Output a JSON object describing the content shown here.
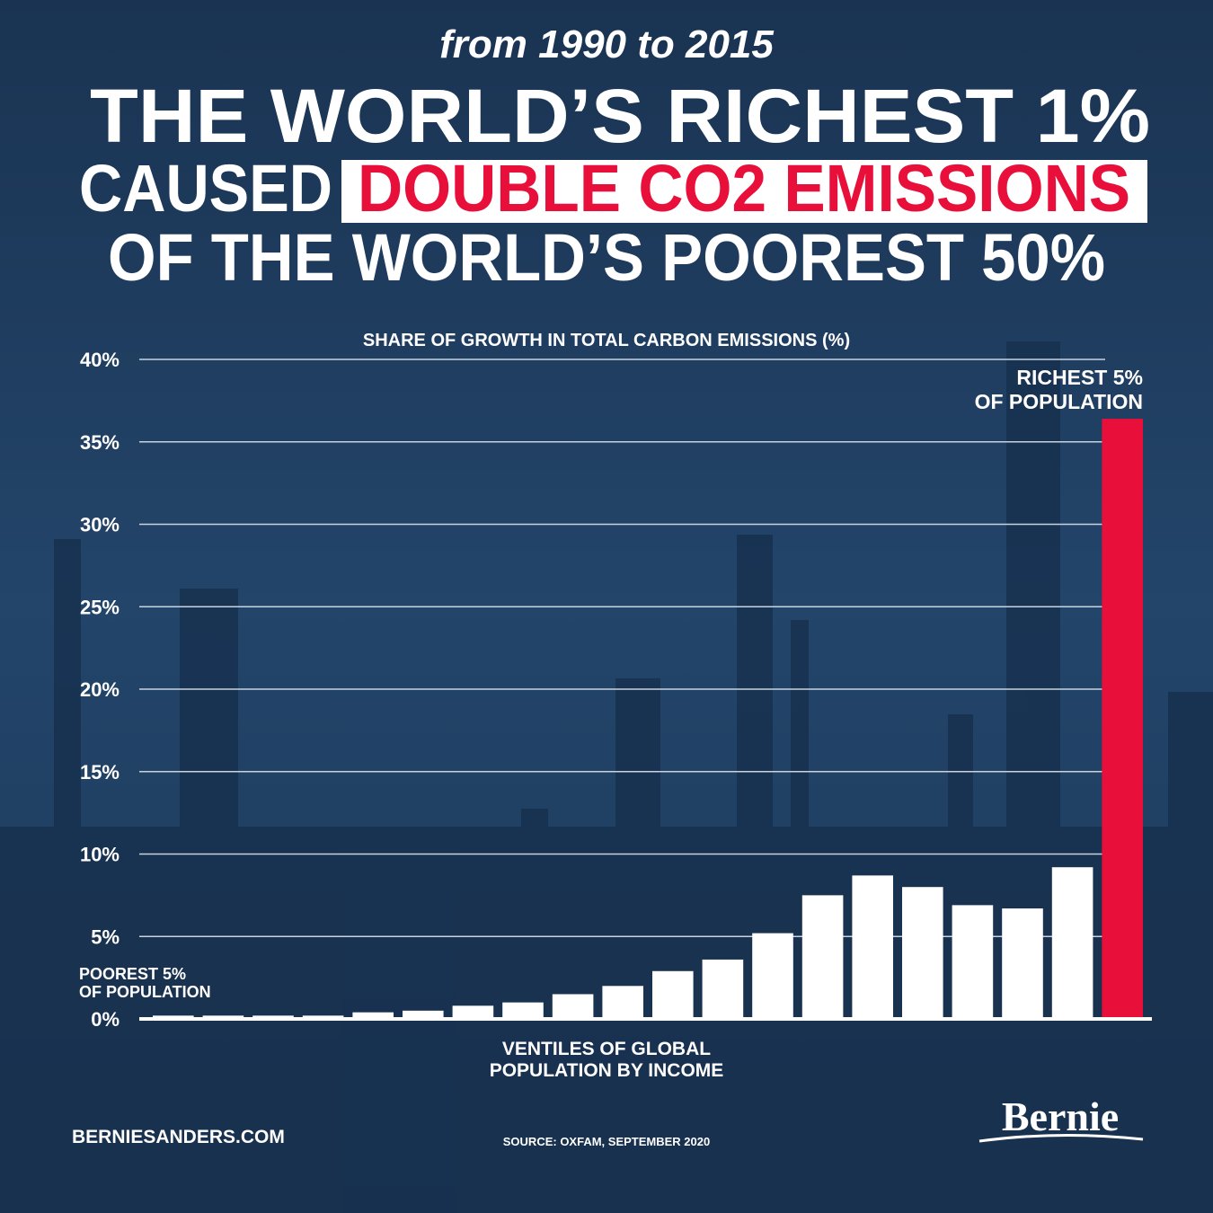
{
  "header": {
    "subtitle": "from 1990 to 2015",
    "line1": "THE WORLD’S RICHEST 1%",
    "line2a": "CAUSED",
    "line2b": "DOUBLE CO2 EMISSIONS",
    "line3": "OF THE WORLD’S POOREST 50%"
  },
  "chart_data": {
    "type": "bar",
    "title": "SHARE OF GROWTH IN TOTAL CARBON EMISSIONS (%)",
    "xlabel": [
      "VENTILES OF GLOBAL",
      "POPULATION BY INCOME"
    ],
    "categories": [
      null,
      null,
      null,
      null,
      null,
      null,
      null,
      null,
      null,
      null,
      null,
      null,
      null,
      null,
      null,
      null,
      null,
      null,
      null,
      null
    ],
    "values": [
      0.2,
      0.2,
      0.2,
      0.2,
      0.4,
      0.5,
      0.8,
      1.0,
      1.5,
      2.0,
      2.9,
      3.6,
      5.2,
      7.5,
      8.7,
      8.0,
      6.9,
      6.7,
      9.2,
      36.4
    ],
    "colors": [
      "#ffffff",
      "#ffffff",
      "#ffffff",
      "#ffffff",
      "#ffffff",
      "#ffffff",
      "#ffffff",
      "#ffffff",
      "#ffffff",
      "#ffffff",
      "#ffffff",
      "#ffffff",
      "#ffffff",
      "#ffffff",
      "#ffffff",
      "#ffffff",
      "#ffffff",
      "#ffffff",
      "#ffffff",
      "#e8103a"
    ],
    "ylim": [
      0,
      40
    ],
    "yticks": [
      {
        "value": 0,
        "label": "0%"
      },
      {
        "value": 5,
        "label": "5%"
      },
      {
        "value": 10,
        "label": "10%"
      },
      {
        "value": 15,
        "label": "15%"
      },
      {
        "value": 20,
        "label": "20%"
      },
      {
        "value": 25,
        "label": "25%"
      },
      {
        "value": 30,
        "label": "30%"
      },
      {
        "value": 35,
        "label": "35%"
      },
      {
        "value": 40,
        "label": "40%"
      }
    ],
    "grid": true,
    "annotations": [
      [
        "POOREST 5%",
        "OF POPULATION"
      ],
      [
        "RICHEST 5%",
        "OF POPULATION"
      ]
    ]
  },
  "footer": {
    "site": "BERNIESANDERS.COM",
    "source": "SOURCE: OXFAM, SEPTEMBER 2020",
    "logo": "Bernie"
  }
}
